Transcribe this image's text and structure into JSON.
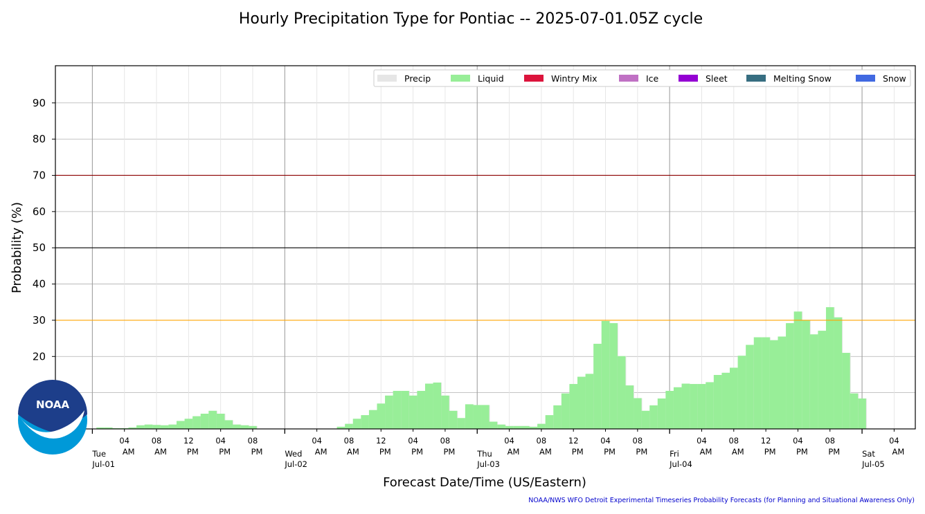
{
  "title": "Hourly Precipitation Type for Pontiac -- 2025-07-01.05Z cycle",
  "xlabel": "Forecast Date/Time (US/Eastern)",
  "ylabel": "Probability (%)",
  "credit": "NOAA/NWS WFO Detroit Experimental Timeseries Probability Forecasts (for Planning and Situational Awareness Only)",
  "logo_text": "NOAA",
  "colors": {
    "precip": "#e6e6e6",
    "liquid": "#98ee98",
    "wintry_mix": "#dc143c",
    "ice": "#c071c4",
    "sleet": "#9400d3",
    "melting_snow": "#376e81",
    "snow": "#4169e1",
    "line_70": "#8b0000",
    "line_50": "#000000",
    "line_30": "#ffa500",
    "noaa_blue": "#0099d8",
    "noaa_navy": "#1d3e8a"
  },
  "chart_data": {
    "type": "bar",
    "title": "Hourly Precipitation Type for Pontiac -- 2025-07-01.05Z cycle",
    "xlabel": "Forecast Date/Time (US/Eastern)",
    "ylabel": "Probability (%)",
    "x_range": [
      "Jul-01 00:00",
      "Jul-05 08:00"
    ],
    "ylim": [
      0,
      100
    ],
    "yticks": [
      "20",
      "30",
      "40",
      "50",
      "60",
      "70",
      "80",
      "90"
    ],
    "grid": true,
    "legend_position": "top-right",
    "reference_lines": [
      70,
      50,
      30
    ],
    "legend": [
      "Precip",
      "Liquid",
      "Wintry Mix",
      "Ice",
      "Sleet",
      "Melting Snow",
      "Snow"
    ],
    "day_labels": [
      {
        "weekday": "Tue",
        "date": "Jul-01",
        "start_hour": 0
      },
      {
        "weekday": "Wed",
        "date": "Jul-02",
        "start_hour": 24
      },
      {
        "weekday": "Thu",
        "date": "Jul-03",
        "start_hour": 48
      },
      {
        "weekday": "Fri",
        "date": "Jul-04",
        "start_hour": 72
      },
      {
        "weekday": "Sat",
        "date": "Jul-05",
        "start_hour": 96
      }
    ],
    "hour_tick_labels": [
      {
        "hour": "04",
        "ampm": "AM"
      },
      {
        "hour": "08",
        "ampm": "AM"
      },
      {
        "hour": "12",
        "ampm": "PM"
      },
      {
        "hour": "04",
        "ampm": "PM"
      },
      {
        "hour": "08",
        "ampm": "PM"
      }
    ],
    "series_start_hour": 1,
    "series": [
      {
        "name": "Liquid",
        "values": [
          0.4,
          0.4,
          0.2,
          0.2,
          0.4,
          1.0,
          1.2,
          1.1,
          1.0,
          1.2,
          2.2,
          2.8,
          3.5,
          4.2,
          5.0,
          4.2,
          2.4,
          1.2,
          1.0,
          0.8,
          0,
          0,
          0,
          0,
          0,
          0,
          0,
          0,
          0,
          0,
          0.6,
          1.4,
          2.8,
          3.8,
          5.2,
          7.0,
          9.2,
          10.5,
          10.5,
          9.2,
          10.5,
          12.5,
          12.8,
          9.2,
          5.0,
          3.0,
          6.8,
          6.6,
          6.6,
          2.0,
          1.2,
          0.8,
          0.8,
          0.8,
          0.6,
          1.4,
          3.8,
          6.5,
          9.8,
          12.4,
          14.4,
          15.2,
          23.5,
          29.8,
          29.2,
          20.1,
          12.0,
          8.5,
          5.0,
          6.5,
          8.4,
          10.5,
          11.5,
          12.5,
          12.4,
          12.4,
          12.9,
          14.9,
          15.5,
          16.9,
          20.2,
          23.2,
          25.3,
          25.3,
          24.5,
          25.5,
          29.2,
          32.4,
          30.0,
          26.1,
          27.1,
          33.6,
          30.8,
          21.0,
          9.8,
          8.4
        ]
      },
      {
        "name": "Precip",
        "values": [
          0.4,
          0.4,
          0.2,
          0.2,
          0.4,
          1.0,
          1.2,
          1.1,
          1.0,
          1.2,
          2.2,
          2.8,
          3.5,
          4.2,
          5.0,
          4.2,
          2.4,
          1.2,
          1.0,
          0.8,
          0,
          0,
          0,
          0,
          0,
          0,
          0,
          0,
          0,
          0,
          0.6,
          1.4,
          2.8,
          3.8,
          5.2,
          7.0,
          9.2,
          10.5,
          10.5,
          9.2,
          10.5,
          12.5,
          12.8,
          9.2,
          5.0,
          3.0,
          6.8,
          6.6,
          6.6,
          2.0,
          1.2,
          0.8,
          0.8,
          0.8,
          0.6,
          1.4,
          3.8,
          6.5,
          9.8,
          12.4,
          14.4,
          15.2,
          23.5,
          29.8,
          29.2,
          20.1,
          12.0,
          8.5,
          5.0,
          6.5,
          8.4,
          10.5,
          11.5,
          12.5,
          12.4,
          12.4,
          12.9,
          14.9,
          15.5,
          16.9,
          20.2,
          23.2,
          25.3,
          25.3,
          24.5,
          25.5,
          29.2,
          32.4,
          30.0,
          26.1,
          27.1,
          33.6,
          30.8,
          21.0,
          9.8,
          8.4
        ]
      }
    ]
  }
}
